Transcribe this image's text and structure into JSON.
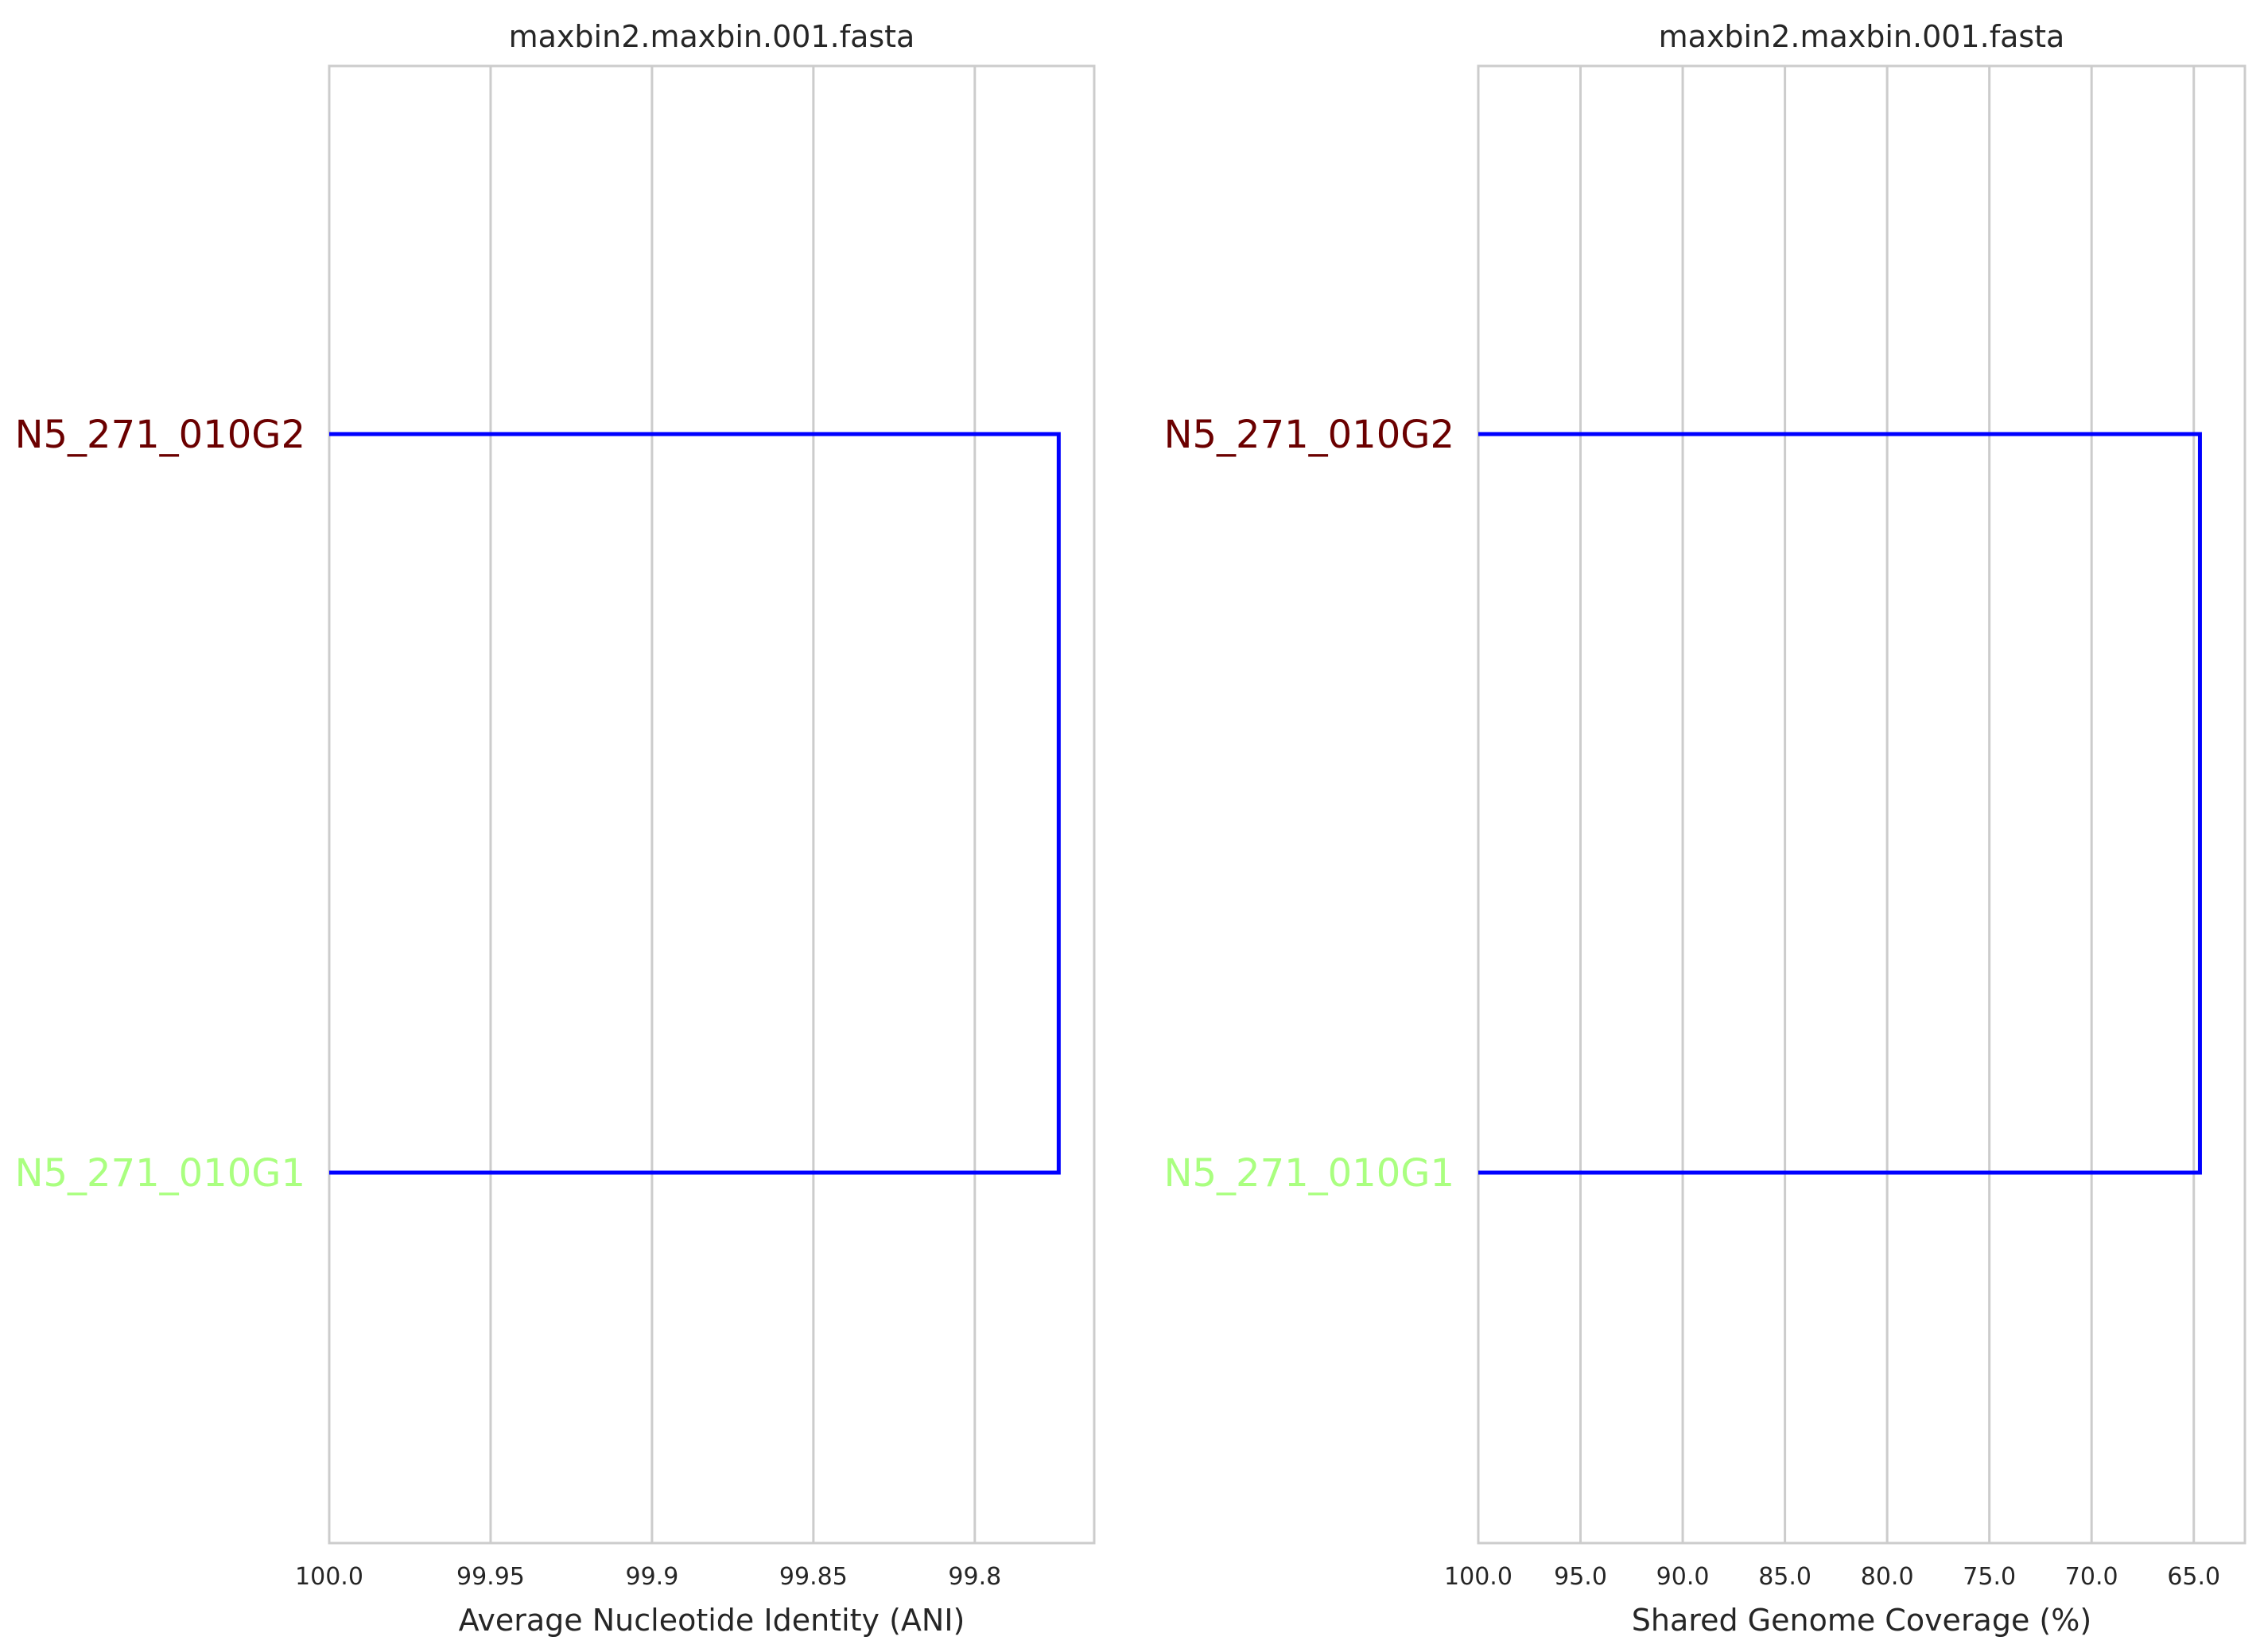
{
  "chart_data": [
    {
      "type": "dendrogram",
      "title": "maxbin2.maxbin.001.fasta",
      "xlabel": "Average Nucleotide Identity (ANI)",
      "xlim": [
        100.0,
        99.763
      ],
      "grid": true,
      "ticks": [
        100.0,
        99.95,
        99.9,
        99.85,
        99.8
      ],
      "tick_labels": [
        "100.0",
        "99.95",
        "99.9",
        "99.85",
        "99.8"
      ],
      "leaves": [
        {
          "name": "N5_271_010G2",
          "color": "#6b0000"
        },
        {
          "name": "N5_271_010G1",
          "color": "#aaff80"
        }
      ],
      "merge_height": 99.774,
      "link_color": "#0000ff"
    },
    {
      "type": "dendrogram",
      "title": "maxbin2.maxbin.001.fasta",
      "xlabel": "Shared Genome Coverage (%)",
      "xlim": [
        100.0,
        62.5
      ],
      "grid": true,
      "ticks": [
        100.0,
        95.0,
        90.0,
        85.0,
        80.0,
        75.0,
        70.0,
        65.0
      ],
      "tick_labels": [
        "100.0",
        "95.0",
        "90.0",
        "85.0",
        "80.0",
        "75.0",
        "70.0",
        "65.0"
      ],
      "leaves": [
        {
          "name": "N5_271_010G2",
          "color": "#6b0000"
        },
        {
          "name": "N5_271_010G1",
          "color": "#aaff80"
        }
      ],
      "merge_height": 64.7,
      "link_color": "#0000ff"
    }
  ]
}
